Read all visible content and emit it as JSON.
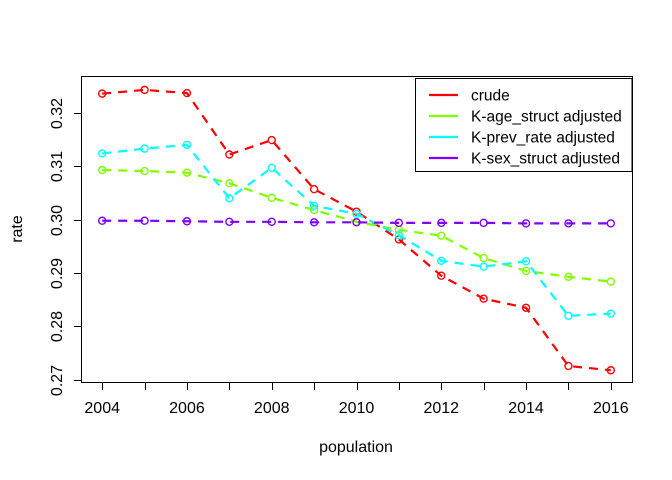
{
  "chart_data": {
    "type": "line",
    "title": "",
    "xlabel": "population",
    "ylabel": "rate",
    "x": [
      2004,
      2005,
      2006,
      2007,
      2008,
      2009,
      2010,
      2011,
      2012,
      2013,
      2014,
      2015,
      2016
    ],
    "x_label_ticks": [
      2004,
      2006,
      2008,
      2010,
      2012,
      2014,
      2016
    ],
    "y_ticks": [
      0.27,
      0.28,
      0.29,
      0.3,
      0.31,
      0.32
    ],
    "xlim": [
      2003.5,
      2016.5
    ],
    "ylim": [
      0.2696,
      0.3269
    ],
    "grid": false,
    "legend_position": "topright",
    "line_style": "dashed",
    "marker": "open-circle",
    "series": [
      {
        "name": "crude",
        "color": "#FF0000",
        "values": [
          0.3236,
          0.3243,
          0.3237,
          0.3122,
          0.3149,
          0.3057,
          0.3015,
          0.2963,
          0.2895,
          0.2852,
          0.2835,
          0.2726,
          0.2718
        ]
      },
      {
        "name": "K-age_struct adjusted",
        "color": "#80FF00",
        "values": [
          0.3093,
          0.3091,
          0.3088,
          0.3068,
          0.3041,
          0.3018,
          0.2996,
          0.2981,
          0.297,
          0.2928,
          0.2904,
          0.2893,
          0.2884
        ]
      },
      {
        "name": "K-prev_rate adjusted",
        "color": "#00FFFF",
        "values": [
          0.3124,
          0.3133,
          0.314,
          0.304,
          0.3097,
          0.3026,
          0.3011,
          0.2971,
          0.2923,
          0.2912,
          0.2922,
          0.282,
          0.2824
        ]
      },
      {
        "name": "K-sex_struct adjusted",
        "color": "#8000FF",
        "values": [
          0.2998,
          0.2998,
          0.2997,
          0.2996,
          0.2996,
          0.2995,
          0.2995,
          0.2994,
          0.2994,
          0.2994,
          0.2993,
          0.2993,
          0.2993
        ]
      }
    ]
  }
}
